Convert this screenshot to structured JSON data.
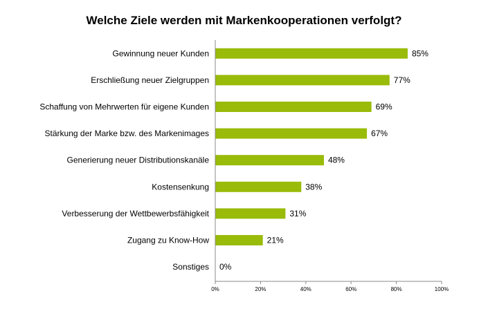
{
  "chart_data": {
    "type": "bar",
    "orientation": "horizontal",
    "title": "Welche Ziele werden mit Markenkooperationen verfolgt?",
    "categories": [
      "Gewinnung neuer Kunden",
      "Erschließung neuer Zielgruppen",
      "Schaffung von Mehrwerten für eigene Kunden",
      "Stärkung der Marke bzw. des Markenimages",
      "Generierung neuer Distributionskanäle",
      "Kostensenkung",
      "Verbesserung der Wettbewerbsfähigkeit",
      "Zugang zu Know-How",
      "Sonstiges"
    ],
    "values": [
      85,
      77,
      69,
      67,
      48,
      38,
      31,
      21,
      0
    ],
    "value_labels": [
      "85%",
      "77%",
      "69%",
      "67%",
      "48%",
      "38%",
      "31%",
      "21%",
      "0%"
    ],
    "xlim": [
      0,
      100
    ],
    "xticks": [
      0,
      20,
      40,
      60,
      80,
      100
    ],
    "xtick_labels": [
      "0%",
      "20%",
      "40%",
      "60%",
      "80%",
      "100%"
    ],
    "xlabel": "",
    "ylabel": "",
    "grid": false,
    "bar_color": "#99bb09"
  }
}
